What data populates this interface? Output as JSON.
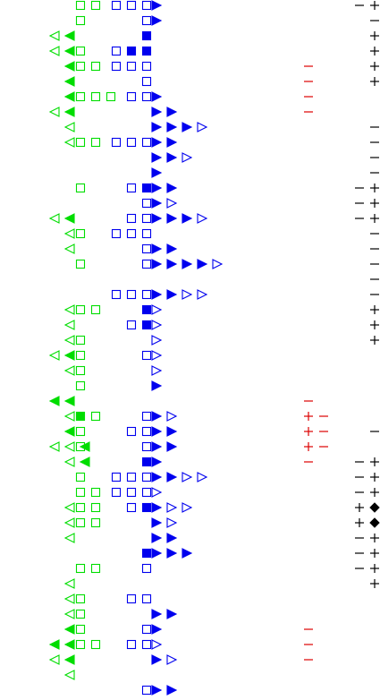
{
  "colors": {
    "green": "#00dd00",
    "blue": "#0000ee",
    "red": "#dd0000",
    "black": "#000000"
  },
  "glyph_legend": {
    "tri_left_filled": "green-filled-left-triangle",
    "tri_left_open": "green-open-left-triangle",
    "sq_green_open": "green-open-square",
    "sq_green_filled": "green-filled-square",
    "sq_blue_open": "blue-open-square",
    "sq_blue_filled": "blue-filled-square",
    "tri_right_filled": "blue-filled-right-triangle",
    "tri_right_open": "blue-open-right-triangle",
    "minus_red": "red-minus",
    "plus_red": "red-plus",
    "minus_black": "black-minus",
    "plus_black": "black-plus",
    "diamond_black": "black-filled-diamond"
  },
  "rows": [
    {
      "row": 0,
      "green": [
        "",
        "",
        "",
        "sq",
        "sq"
      ],
      "blue": [
        "so",
        "so",
        "so"
      ],
      "tri": [
        "f"
      ],
      "red": [],
      "black": [
        "-",
        "+"
      ]
    },
    {
      "row": 1,
      "green": [
        "",
        "",
        "",
        "sq",
        ""
      ],
      "blue": [
        "",
        "",
        "so"
      ],
      "tri": [
        "f"
      ],
      "red": [],
      "black": [
        "",
        "-"
      ]
    },
    {
      "row": 2,
      "green": [
        "to",
        "tf",
        "",
        "",
        ""
      ],
      "blue": [
        "",
        "",
        "sf"
      ],
      "tri": [],
      "red": [],
      "black": [
        "",
        "+"
      ]
    },
    {
      "row": 3,
      "green": [
        "to",
        "tf",
        "",
        "sq",
        ""
      ],
      "blue": [
        "so",
        "sf",
        "sf"
      ],
      "tri": [],
      "red": [],
      "black": [
        "",
        "+"
      ]
    },
    {
      "row": 4,
      "green": [
        "",
        "tf",
        "",
        "sq",
        "sq"
      ],
      "blue": [
        "so",
        "so",
        "so"
      ],
      "tri": [],
      "red": [
        "-"
      ],
      "black": [
        "",
        "+"
      ]
    },
    {
      "row": 5,
      "green": [
        "",
        "tf",
        "",
        "",
        ""
      ],
      "blue": [
        "",
        "",
        "so"
      ],
      "tri": [],
      "red": [
        "-"
      ],
      "black": [
        "",
        "+"
      ]
    },
    {
      "row": 6,
      "green": [
        "",
        "tf",
        "",
        "sq",
        "sq",
        "sq"
      ],
      "blue": [
        "",
        "so",
        "so"
      ],
      "tri": [
        "f"
      ],
      "red": [
        "-"
      ],
      "black": []
    },
    {
      "row": 7,
      "green": [
        "to",
        "tf",
        "",
        "",
        ""
      ],
      "blue": [],
      "tri": [
        "f",
        "f"
      ],
      "red": [
        "-"
      ],
      "black": []
    },
    {
      "row": 8,
      "green": [
        "",
        "to",
        "",
        "",
        ""
      ],
      "blue": [],
      "tri": [
        "f",
        "f",
        "f",
        "o"
      ],
      "red": [],
      "black": [
        "",
        "-"
      ]
    },
    {
      "row": 9,
      "green": [
        "",
        "to",
        "",
        "sq",
        "sq"
      ],
      "blue": [
        "so",
        "so",
        "so"
      ],
      "tri": [
        "f",
        "f"
      ],
      "red": [],
      "black": [
        "",
        "-"
      ]
    },
    {
      "row": 10,
      "green": [],
      "blue": [],
      "tri": [
        "f",
        "f",
        "o"
      ],
      "red": [],
      "black": [
        "",
        "-"
      ]
    },
    {
      "row": 11,
      "green": [],
      "blue": [],
      "tri": [
        "f"
      ],
      "red": [],
      "black": [
        "",
        "-"
      ]
    },
    {
      "row": 12,
      "green": [
        "",
        "",
        "",
        "sq",
        ""
      ],
      "blue": [
        "",
        "so",
        "sf"
      ],
      "tri": [
        "f",
        "f"
      ],
      "red": [],
      "black": [
        "-",
        "+"
      ]
    },
    {
      "row": 13,
      "green": [],
      "blue": [
        "",
        "",
        "so"
      ],
      "tri": [
        "f",
        "o"
      ],
      "red": [],
      "black": [
        "-",
        "+"
      ]
    },
    {
      "row": 14,
      "green": [
        "to",
        "tf",
        "",
        "",
        ""
      ],
      "blue": [
        "",
        "so",
        "so"
      ],
      "tri": [
        "f",
        "f",
        "f",
        "o"
      ],
      "red": [],
      "black": [
        "-",
        "+"
      ]
    },
    {
      "row": 15,
      "green": [
        "",
        "to",
        "",
        "sq",
        ""
      ],
      "blue": [
        "so",
        "so",
        "so"
      ],
      "tri": [],
      "red": [],
      "black": [
        "",
        "-"
      ]
    },
    {
      "row": 16,
      "green": [
        "",
        "to",
        "",
        "",
        ""
      ],
      "blue": [
        "",
        "",
        "so"
      ],
      "tri": [
        "f",
        "f"
      ],
      "red": [],
      "black": [
        "",
        "-"
      ]
    },
    {
      "row": 17,
      "green": [
        "",
        "",
        "",
        "sq",
        ""
      ],
      "blue": [
        "",
        "",
        "so"
      ],
      "tri": [
        "f",
        "f",
        "f",
        "f",
        "o"
      ],
      "red": [],
      "black": [
        "",
        "-"
      ]
    },
    {
      "row": 18,
      "green": [],
      "blue": [],
      "tri": [],
      "red": [],
      "black": [
        "",
        "-"
      ]
    },
    {
      "row": 19,
      "green": [
        "",
        "",
        "",
        "",
        ""
      ],
      "blue": [
        "so",
        "so",
        "so"
      ],
      "tri": [
        "f",
        "f",
        "o",
        "o"
      ],
      "red": [],
      "black": [
        "",
        "-"
      ]
    },
    {
      "row": 20,
      "green": [
        "",
        "to",
        "",
        "sq",
        "sq"
      ],
      "blue": [
        "",
        "",
        "sf"
      ],
      "tri": [
        "o"
      ],
      "red": [],
      "black": [
        "",
        "+"
      ]
    },
    {
      "row": 21,
      "green": [
        "",
        "to",
        "",
        "",
        ""
      ],
      "blue": [
        "",
        "so",
        "sf"
      ],
      "tri": [
        "o"
      ],
      "red": [],
      "black": [
        "",
        "+"
      ]
    },
    {
      "row": 22,
      "green": [
        "",
        "to",
        "",
        "sq",
        ""
      ],
      "blue": [],
      "tri": [
        "o"
      ],
      "red": [],
      "black": [
        "",
        "+"
      ]
    },
    {
      "row": 23,
      "green": [
        "to",
        "tf",
        "",
        "sq",
        ""
      ],
      "blue": [
        "",
        "",
        "so"
      ],
      "tri": [
        "o"
      ],
      "red": [],
      "black": []
    },
    {
      "row": 24,
      "green": [
        "",
        "to",
        "",
        "sq",
        ""
      ],
      "blue": [],
      "tri": [
        "o"
      ],
      "red": [],
      "black": []
    },
    {
      "row": 25,
      "green": [
        "",
        "",
        "",
        "sq",
        ""
      ],
      "blue": [],
      "tri": [
        "f"
      ],
      "red": [],
      "black": []
    },
    {
      "row": 26,
      "green": [
        "tf",
        "tf",
        "",
        "",
        ""
      ],
      "blue": [],
      "tri": [],
      "red": [
        "-"
      ],
      "black": []
    },
    {
      "row": 27,
      "green": [
        "",
        "to",
        "",
        "sf",
        "sq"
      ],
      "blue": [
        "",
        "",
        "so"
      ],
      "tri": [
        "f",
        "o"
      ],
      "red": [
        "+",
        "-"
      ],
      "black": []
    },
    {
      "row": 28,
      "green": [
        "",
        "tf",
        "",
        "sq",
        ""
      ],
      "blue": [
        "",
        "so",
        "so"
      ],
      "tri": [
        "f",
        "f"
      ],
      "red": [
        "+",
        "-"
      ],
      "black": [
        "",
        "-"
      ]
    },
    {
      "row": 29,
      "green": [
        "to",
        "to",
        "tf",
        "sq",
        ""
      ],
      "blue": [
        "",
        "",
        "so"
      ],
      "tri": [
        "f",
        "f"
      ],
      "red": [
        "+",
        "-"
      ],
      "black": []
    },
    {
      "row": 30,
      "green": [
        "",
        "to",
        "tf",
        "",
        ""
      ],
      "blue": [
        "",
        "",
        "sf"
      ],
      "tri": [
        "f"
      ],
      "red": [
        "-"
      ],
      "black": [
        "-",
        "+"
      ]
    },
    {
      "row": 31,
      "green": [
        "",
        "",
        "",
        "sq",
        ""
      ],
      "blue": [
        "so",
        "so",
        "so"
      ],
      "tri": [
        "f",
        "f",
        "o",
        "o"
      ],
      "red": [],
      "black": [
        "-",
        "+"
      ]
    },
    {
      "row": 32,
      "green": [
        "",
        "",
        "",
        "sq",
        "sq"
      ],
      "blue": [
        "so",
        "so",
        "so"
      ],
      "tri": [
        "o"
      ],
      "red": [],
      "black": [
        "-",
        "+"
      ]
    },
    {
      "row": 33,
      "green": [
        "",
        "to",
        "",
        "sq",
        "sq"
      ],
      "blue": [
        "",
        "so",
        "sf"
      ],
      "tri": [
        "f",
        "o",
        "o"
      ],
      "red": [],
      "black": [
        "+",
        "d"
      ]
    },
    {
      "row": 34,
      "green": [
        "",
        "to",
        "",
        "sq",
        "sq"
      ],
      "blue": [],
      "tri": [
        "f",
        "o"
      ],
      "red": [],
      "black": [
        "+",
        "d"
      ]
    },
    {
      "row": 35,
      "green": [
        "",
        "to",
        "",
        "",
        ""
      ],
      "blue": [],
      "tri": [
        "f",
        "f"
      ],
      "red": [],
      "black": [
        "-",
        "+"
      ]
    },
    {
      "row": 36,
      "green": [],
      "blue": [
        "",
        "",
        "sf"
      ],
      "tri": [
        "f",
        "f",
        "f"
      ],
      "red": [],
      "black": [
        "-",
        "+"
      ]
    },
    {
      "row": 37,
      "green": [
        "",
        "",
        "",
        "sq",
        "sq"
      ],
      "blue": [
        "",
        "",
        "so"
      ],
      "tri": [],
      "red": [],
      "black": [
        "-",
        "+"
      ]
    },
    {
      "row": 38,
      "green": [
        "",
        "to",
        "",
        "",
        ""
      ],
      "blue": [],
      "tri": [],
      "red": [],
      "black": [
        "",
        "+"
      ]
    },
    {
      "row": 39,
      "green": [
        "",
        "to",
        "",
        "sq",
        ""
      ],
      "blue": [
        "",
        "so",
        "so"
      ],
      "tri": [],
      "red": [],
      "black": []
    },
    {
      "row": 40,
      "green": [
        "",
        "to",
        "",
        "sq",
        ""
      ],
      "blue": [],
      "tri": [
        "f",
        "f"
      ],
      "red": [],
      "black": []
    },
    {
      "row": 41,
      "green": [
        "",
        "tf",
        "",
        "sq",
        ""
      ],
      "blue": [
        "",
        "",
        "so"
      ],
      "tri": [
        "f"
      ],
      "red": [
        "-"
      ],
      "black": []
    },
    {
      "row": 42,
      "green": [
        "tf",
        "tf",
        "",
        "sq",
        "sq"
      ],
      "blue": [
        "",
        "so",
        "so"
      ],
      "tri": [
        "o"
      ],
      "red": [
        "-"
      ],
      "black": []
    },
    {
      "row": 43,
      "green": [
        "to",
        "tf",
        "",
        "",
        ""
      ],
      "blue": [],
      "tri": [
        "f",
        "o"
      ],
      "red": [
        "-"
      ],
      "black": []
    },
    {
      "row": 44,
      "green": [
        "",
        "to",
        "",
        "",
        ""
      ],
      "blue": [],
      "tri": [],
      "red": [],
      "black": []
    },
    {
      "row": 45,
      "green": [],
      "blue": [
        "",
        "",
        "so"
      ],
      "tri": [
        "f",
        "f"
      ],
      "red": [],
      "black": []
    }
  ]
}
